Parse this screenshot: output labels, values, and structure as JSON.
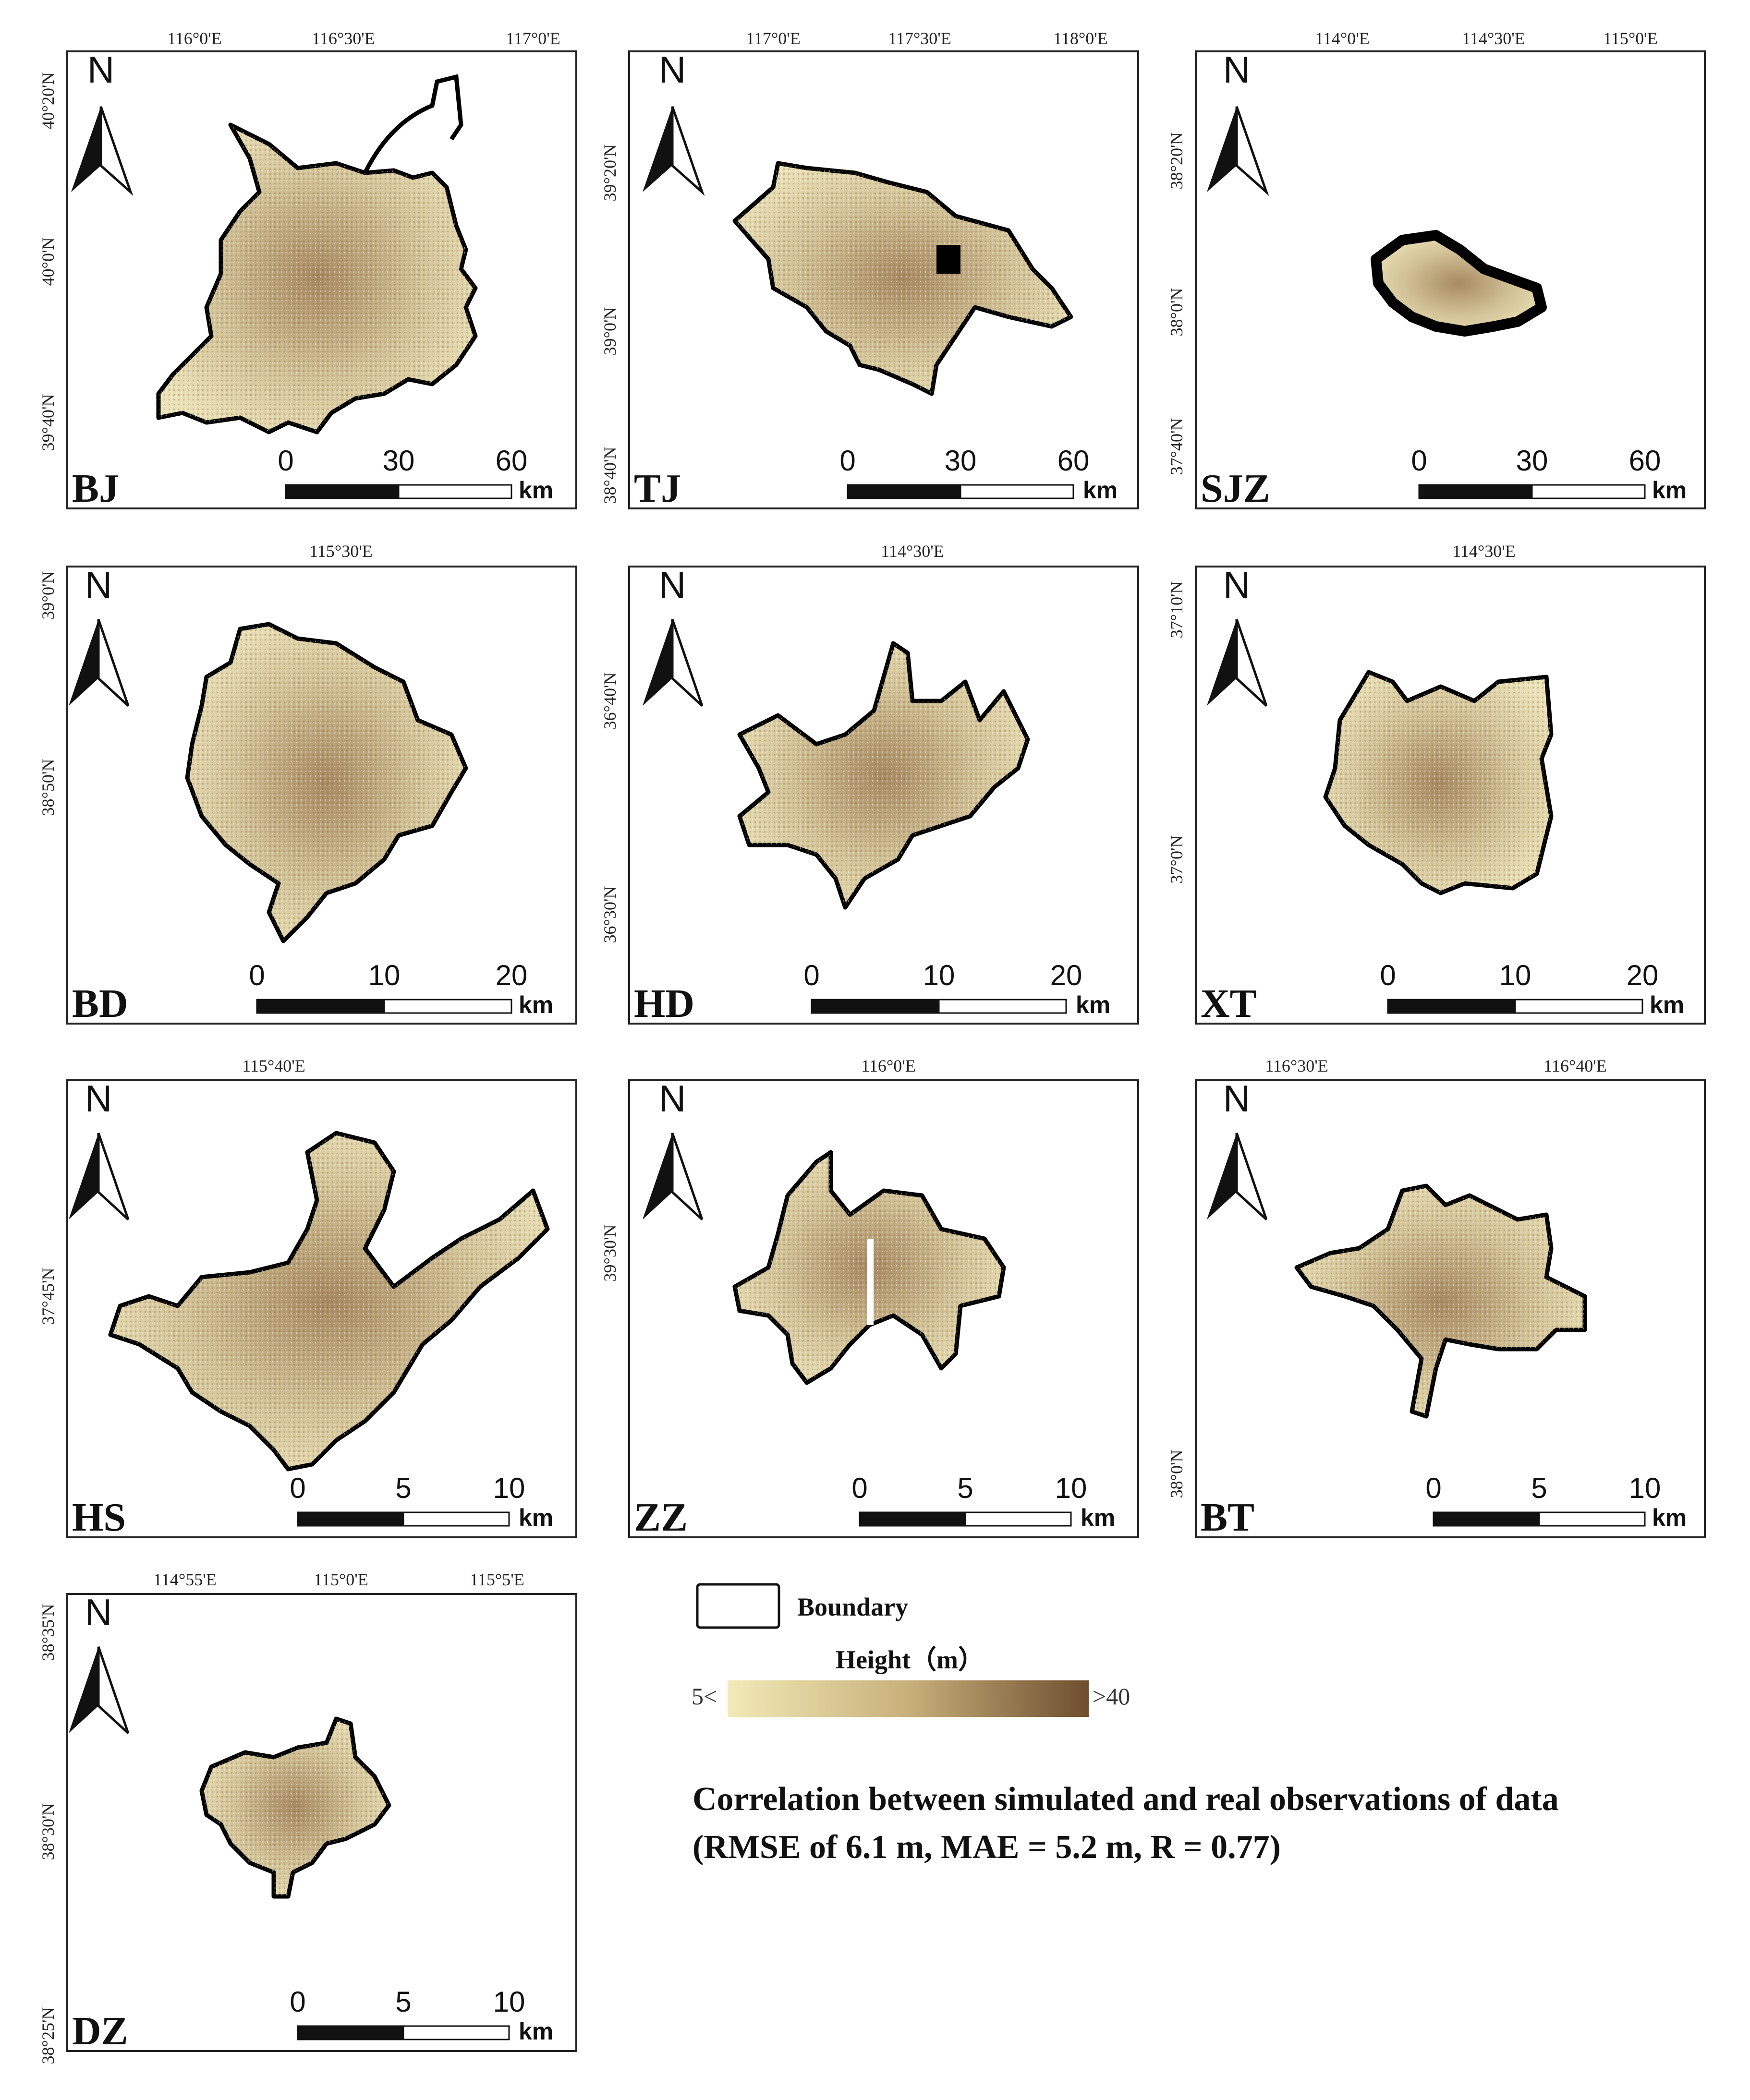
{
  "panels": [
    {
      "id": "BJ",
      "code": "BJ",
      "north": "N",
      "lon_labels": [
        "116°0'E",
        "116°30'E",
        "117°0'E"
      ],
      "lat_labels": [
        "40°20'N",
        "40°0'N",
        "39°40'N"
      ],
      "scale_ticks": [
        "0",
        "30",
        "60"
      ],
      "scale_unit": "km"
    },
    {
      "id": "TJ",
      "code": "TJ",
      "north": "N",
      "lon_labels": [
        "117°0'E",
        "117°30'E",
        "118°0'E"
      ],
      "lat_labels": [
        "39°20'N",
        "39°0'N",
        "38°40'N"
      ],
      "scale_ticks": [
        "0",
        "30",
        "60"
      ],
      "scale_unit": "km"
    },
    {
      "id": "SJZ",
      "code": "SJZ",
      "north": "N",
      "lon_labels": [
        "114°0'E",
        "114°30'E",
        "115°0'E"
      ],
      "lat_labels": [
        "38°20'N",
        "38°0'N",
        "37°40'N"
      ],
      "scale_ticks": [
        "0",
        "30",
        "60"
      ],
      "scale_unit": "km"
    },
    {
      "id": "BD",
      "code": "BD",
      "north": "N",
      "lon_labels": [
        "115°30'E"
      ],
      "lat_labels": [
        "39°0'N",
        "38°50'N"
      ],
      "scale_ticks": [
        "0",
        "10",
        "20"
      ],
      "scale_unit": "km"
    },
    {
      "id": "HD",
      "code": "HD",
      "north": "N",
      "lon_labels": [
        "114°30'E"
      ],
      "lat_labels": [
        "36°40'N",
        "36°30'N"
      ],
      "scale_ticks": [
        "0",
        "10",
        "20"
      ],
      "scale_unit": "km"
    },
    {
      "id": "XT",
      "code": "XT",
      "north": "N",
      "lon_labels": [
        "114°30'E"
      ],
      "lat_labels": [
        "37°10'N",
        "37°0'N"
      ],
      "scale_ticks": [
        "0",
        "10",
        "20"
      ],
      "scale_unit": "km"
    },
    {
      "id": "HS",
      "code": "HS",
      "north": "N",
      "lon_labels": [
        "115°40'E"
      ],
      "lat_labels": [
        "37°45'N"
      ],
      "scale_ticks": [
        "0",
        "5",
        "10"
      ],
      "scale_unit": "km"
    },
    {
      "id": "ZZ",
      "code": "ZZ",
      "north": "N",
      "lon_labels": [
        "116°0'E"
      ],
      "lat_labels": [
        "39°30'N"
      ],
      "scale_ticks": [
        "0",
        "5",
        "10"
      ],
      "scale_unit": "km"
    },
    {
      "id": "BT",
      "code": "BT",
      "north": "N",
      "lon_labels": [
        "116°30'E",
        "116°40'E"
      ],
      "lat_labels": [
        "38°0'N"
      ],
      "scale_ticks": [
        "0",
        "5",
        "10"
      ],
      "scale_unit": "km"
    },
    {
      "id": "DZ",
      "code": "DZ",
      "north": "N",
      "lon_labels": [
        "114°55'E",
        "115°0'E",
        "115°5'E"
      ],
      "lat_labels": [
        "38°35'N",
        "38°30'N",
        "38°25'N"
      ],
      "scale_ticks": [
        "0",
        "5",
        "10"
      ],
      "scale_unit": "km"
    }
  ],
  "legend": {
    "boundary_label": "Boundary",
    "height_title": "Height（m）",
    "height_min": "5<",
    "height_max": ">40",
    "ramp_colors": [
      "#f1eab8",
      "#c8b07a",
      "#6e4e2e"
    ],
    "outline_color": "#000000"
  },
  "summary": {
    "line1": "Correlation between simulated and real observations of data",
    "line2": "(RMSE of 6.1 m, MAE = 5.2 m, R = 0.77)"
  }
}
